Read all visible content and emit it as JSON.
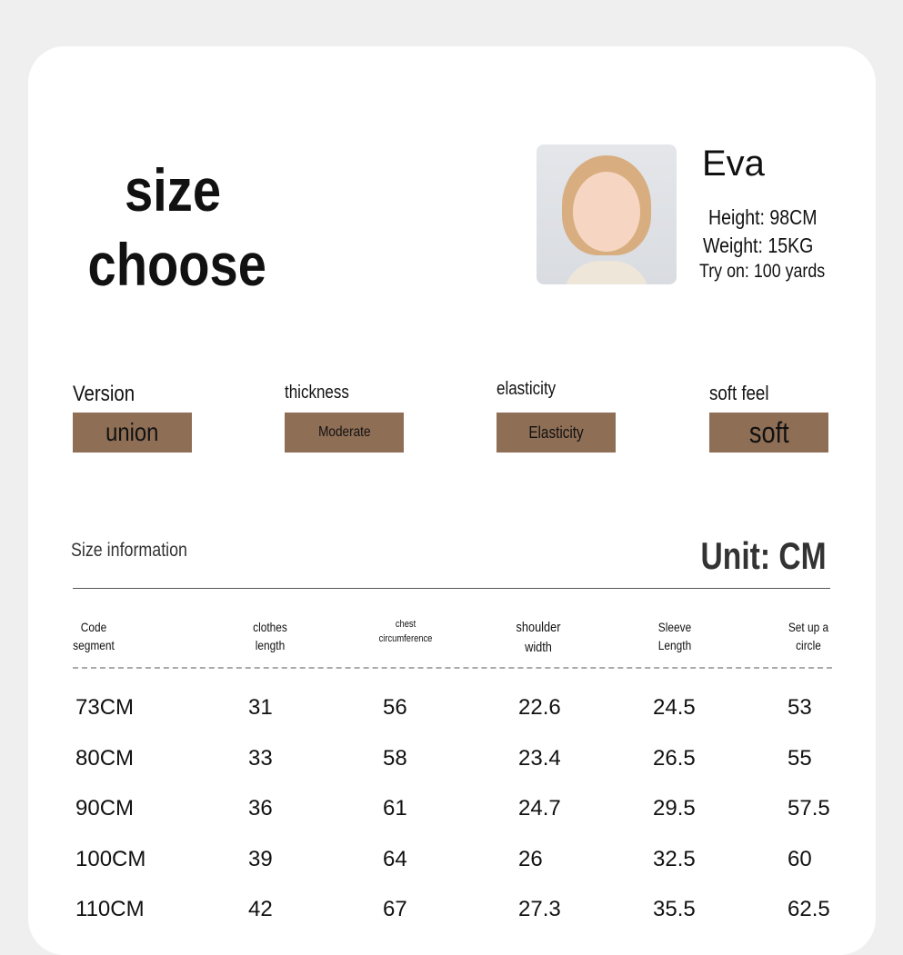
{
  "hero": {
    "line1": "size",
    "line2": "choose"
  },
  "model": {
    "name": "Eva",
    "height": "Height: 98CM",
    "weight": "Weight: 15KG",
    "try_on": "Try on: 100 yards"
  },
  "features": [
    {
      "label": "Version",
      "value": "union"
    },
    {
      "label": "thickness",
      "value": "Moderate"
    },
    {
      "label": "elasticity",
      "value": "Elasticity"
    },
    {
      "label": "soft feel",
      "value": "soft"
    }
  ],
  "feature_color": "#8f6e56",
  "size_info": {
    "title": "Size information",
    "unit": "Unit: CM"
  },
  "table": {
    "headers": [
      [
        "Code",
        "segment"
      ],
      [
        "clothes",
        "length"
      ],
      [
        "chest",
        "circumference"
      ],
      [
        "shoulder",
        "width"
      ],
      [
        "Sleeve",
        "Length"
      ],
      [
        "Set up a",
        "circle"
      ]
    ],
    "rows": [
      [
        "73CM",
        "31",
        "56",
        "22.6",
        "24.5",
        "53"
      ],
      [
        "80CM",
        "33",
        "58",
        "23.4",
        "26.5",
        "55"
      ],
      [
        "90CM",
        "36",
        "61",
        "24.7",
        "29.5",
        "57.5"
      ],
      [
        "100CM",
        "39",
        "64",
        "26",
        "32.5",
        "60"
      ],
      [
        "110CM",
        "42",
        "67",
        "27.3",
        "35.5",
        "62.5"
      ]
    ]
  }
}
